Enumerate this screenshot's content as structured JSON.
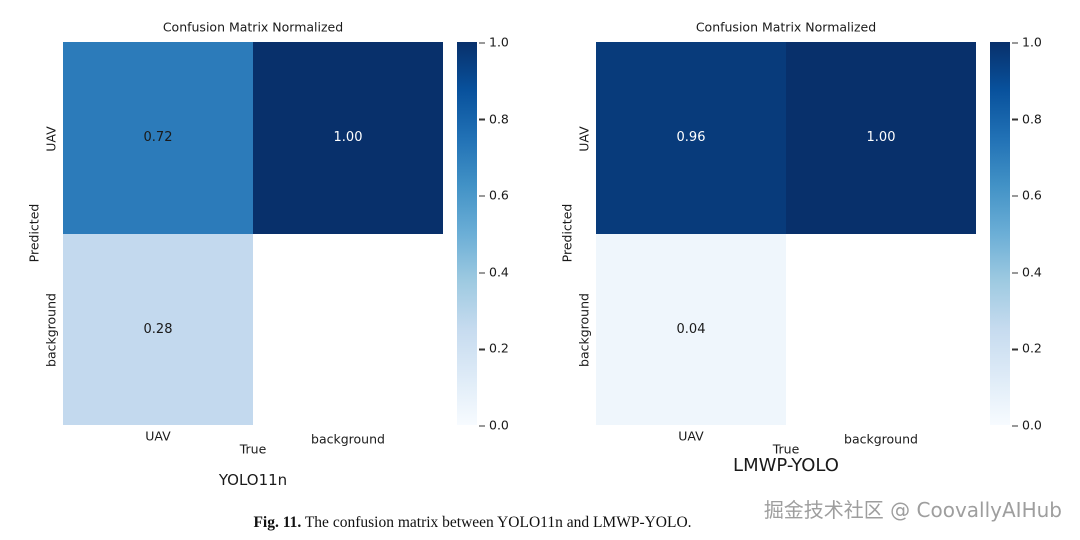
{
  "charts": [
    {
      "title": "Confusion Matrix Normalized",
      "name": "YOLO11n",
      "xlabel": "True",
      "ylabel": "Predicted",
      "x_ticks": [
        "UAV",
        "background"
      ],
      "y_ticks": [
        "UAV",
        "background"
      ],
      "cells": [
        {
          "value": "0.72",
          "bg": "#2c7bba",
          "fg": "#1a1a1a"
        },
        {
          "value": "1.00",
          "bg": "#08306b",
          "fg": "#ffffff"
        },
        {
          "value": "0.28",
          "bg": "#c3d9ee",
          "fg": "#1a1a1a"
        },
        {
          "value": "",
          "bg": "#ffffff",
          "fg": "#1a1a1a"
        }
      ]
    },
    {
      "title": "Confusion Matrix Normalized",
      "name": "LMWP-YOLO",
      "xlabel": "True",
      "ylabel": "Predicted",
      "x_ticks": [
        "UAV",
        "background"
      ],
      "y_ticks": [
        "UAV",
        "background"
      ],
      "cells": [
        {
          "value": "0.96",
          "bg": "#083b7b",
          "fg": "#ffffff"
        },
        {
          "value": "1.00",
          "bg": "#08306b",
          "fg": "#ffffff"
        },
        {
          "value": "0.04",
          "bg": "#eff6fc",
          "fg": "#1a1a1a"
        },
        {
          "value": "",
          "bg": "#ffffff",
          "fg": "#1a1a1a"
        }
      ]
    }
  ],
  "colorbar": {
    "ticks": [
      "1.0",
      "0.8",
      "0.6",
      "0.4",
      "0.2",
      "0.0"
    ],
    "top_color": "#08306b",
    "bottom_color": "#f7fbff"
  },
  "caption": {
    "label": "Fig. 11.",
    "text": "  The confusion matrix between YOLO11n and LMWP-YOLO."
  },
  "watermark": "掘金技术社区 @ CoovallyAIHub",
  "chart_data": [
    {
      "type": "heatmap",
      "title": "Confusion Matrix Normalized",
      "subtitle": "YOLO11n",
      "xlabel": "True",
      "ylabel": "Predicted",
      "x_categories": [
        "UAV",
        "background"
      ],
      "y_categories": [
        "UAV",
        "background"
      ],
      "values": [
        [
          0.72,
          1.0
        ],
        [
          0.28,
          null
        ]
      ],
      "colormap": "Blues",
      "colorbar_range": [
        0.0,
        1.0
      ],
      "colorbar_ticks": [
        0.0,
        0.2,
        0.4,
        0.6,
        0.8,
        1.0
      ],
      "legend_position": "right",
      "grid": false
    },
    {
      "type": "heatmap",
      "title": "Confusion Matrix Normalized",
      "subtitle": "LMWP-YOLO",
      "xlabel": "True",
      "ylabel": "Predicted",
      "x_categories": [
        "UAV",
        "background"
      ],
      "y_categories": [
        "UAV",
        "background"
      ],
      "values": [
        [
          0.96,
          1.0
        ],
        [
          0.04,
          null
        ]
      ],
      "colormap": "Blues",
      "colorbar_range": [
        0.0,
        1.0
      ],
      "colorbar_ticks": [
        0.0,
        0.2,
        0.4,
        0.6,
        0.8,
        1.0
      ],
      "legend_position": "right",
      "grid": false
    }
  ]
}
